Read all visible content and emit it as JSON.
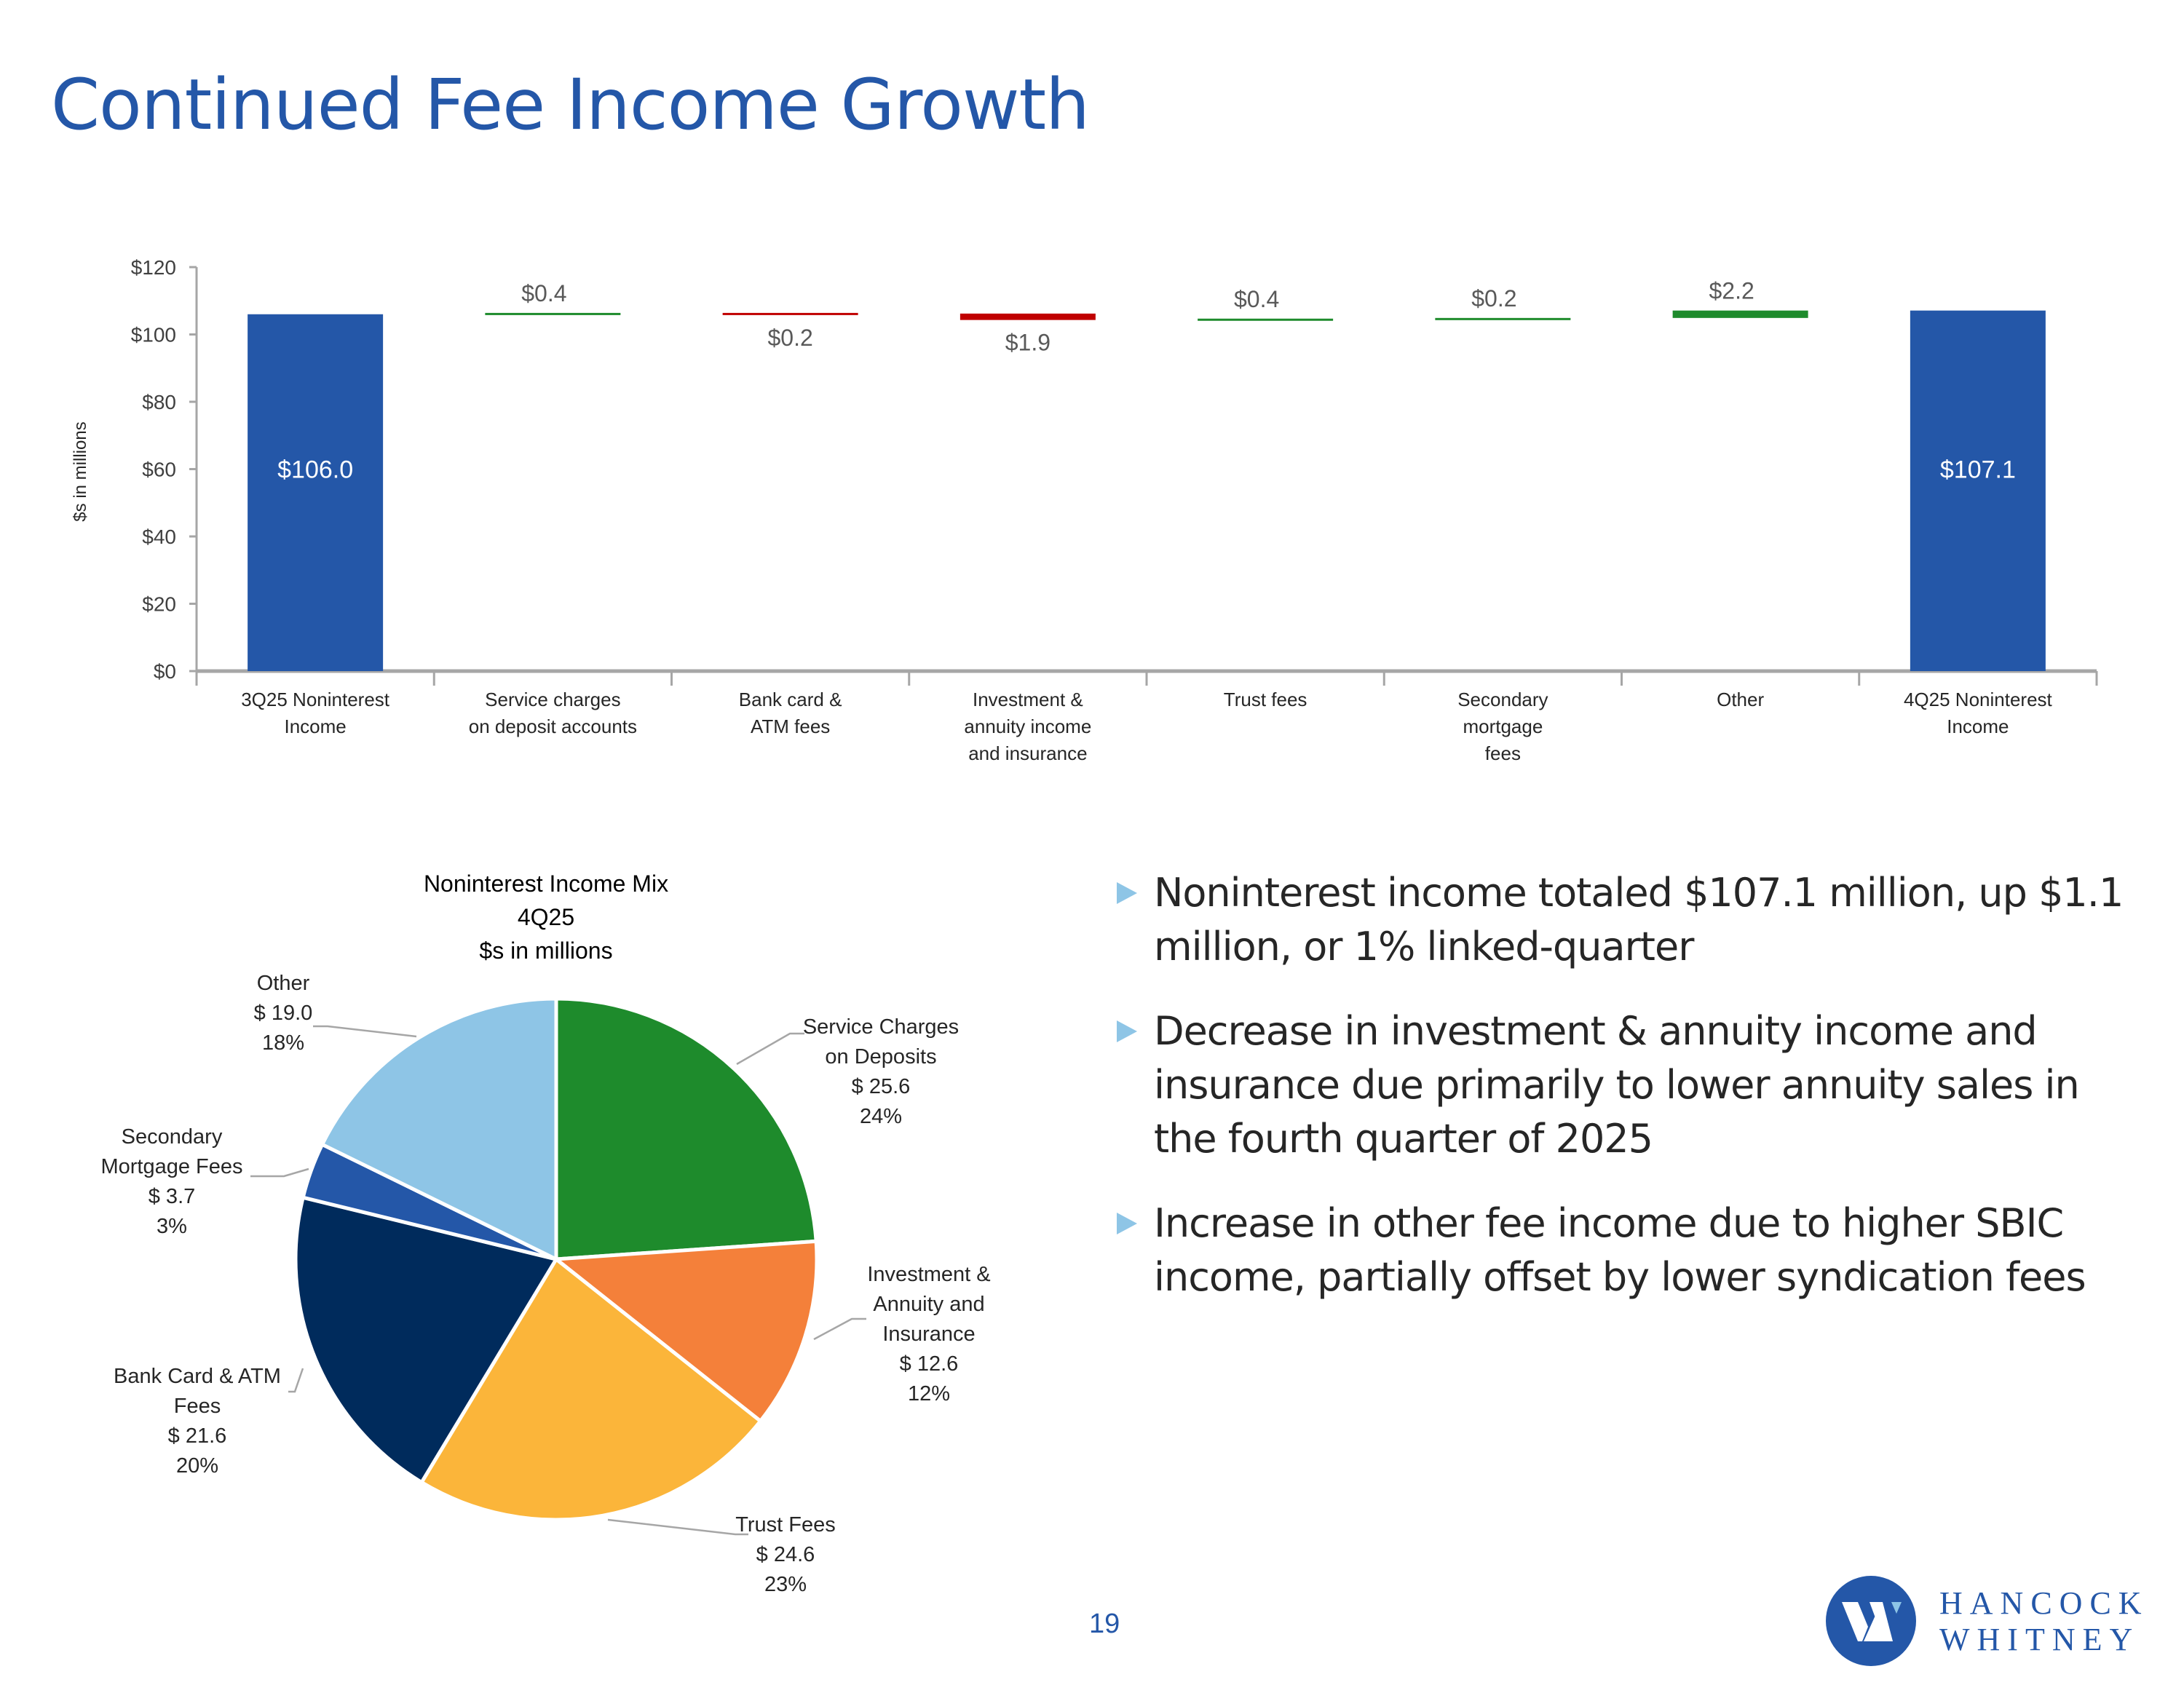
{
  "title": "Continued Fee Income Growth",
  "chart_data": [
    {
      "type": "waterfall",
      "ylabel": "$s in millions",
      "ylim": [
        0,
        120
      ],
      "yticks": [
        0,
        20,
        40,
        60,
        80,
        100,
        120
      ],
      "ytick_labels": [
        "$0",
        "$20",
        "$40",
        "$60",
        "$80",
        "$100",
        "$120"
      ],
      "categories": [
        [
          "3Q25 Noninterest",
          "Income"
        ],
        [
          "Service charges",
          "on deposit accounts"
        ],
        [
          "Bank card &",
          "ATM fees"
        ],
        [
          "Investment &",
          "annuity income",
          "and insurance"
        ],
        [
          "Trust fees"
        ],
        [
          "Secondary",
          "mortgage",
          "fees"
        ],
        [
          "Other"
        ],
        [
          "4Q25 Noninterest",
          "Income"
        ]
      ],
      "values": [
        106.0,
        0.4,
        -0.2,
        -1.9,
        0.4,
        0.2,
        2.2,
        107.1
      ],
      "kinds": [
        "total",
        "delta",
        "delta",
        "delta",
        "delta",
        "delta",
        "delta",
        "total"
      ],
      "data_labels": [
        "$106.0",
        "$0.4",
        "$0.2",
        "$1.9",
        "$0.4",
        "$0.2",
        "$2.2",
        "$107.1"
      ],
      "colors": {
        "total": "#2457a8",
        "increase": "#1e8b2c",
        "decrease": "#c00000"
      },
      "grid": false
    },
    {
      "type": "pie",
      "title": [
        "Noninterest Income Mix",
        "4Q25",
        "$s in millions"
      ],
      "slices": [
        {
          "label": [
            "Service Charges",
            "on Deposits"
          ],
          "value": 25.6,
          "value_label": "$ 25.6",
          "percent": "24%",
          "color": "#1e8b2c"
        },
        {
          "label": [
            "Investment &",
            "Annuity and",
            "Insurance"
          ],
          "value": 12.6,
          "value_label": "$ 12.6",
          "percent": "12%",
          "color": "#f4803a"
        },
        {
          "label": [
            "Trust Fees"
          ],
          "value": 24.6,
          "value_label": "$ 24.6",
          "percent": "23%",
          "color": "#fbb53a"
        },
        {
          "label": [
            "Bank Card & ATM",
            "Fees"
          ],
          "value": 21.6,
          "value_label": "$ 21.6",
          "percent": "20%",
          "color": "#002b5c"
        },
        {
          "label": [
            "Secondary",
            "Mortgage Fees"
          ],
          "value": 3.7,
          "value_label": "$ 3.7",
          "percent": "3%",
          "color": "#2457a8"
        },
        {
          "label": [
            "Other"
          ],
          "value": 19.0,
          "value_label": "$ 19.0",
          "percent": "18%",
          "color": "#8ec5e6"
        }
      ]
    }
  ],
  "bullets": [
    "Noninterest income totaled $107.1 million, up $1.1 million, or 1% linked-quarter",
    "Decrease in investment & annuity income and insurance due primarily to lower annuity sales in the fourth quarter of 2025",
    "Increase in other fee income due to higher SBIC income, partially offset by lower syndication fees"
  ],
  "page_number": "19",
  "logo": {
    "line1": "HANCOCK",
    "line2": "WHITNEY"
  }
}
